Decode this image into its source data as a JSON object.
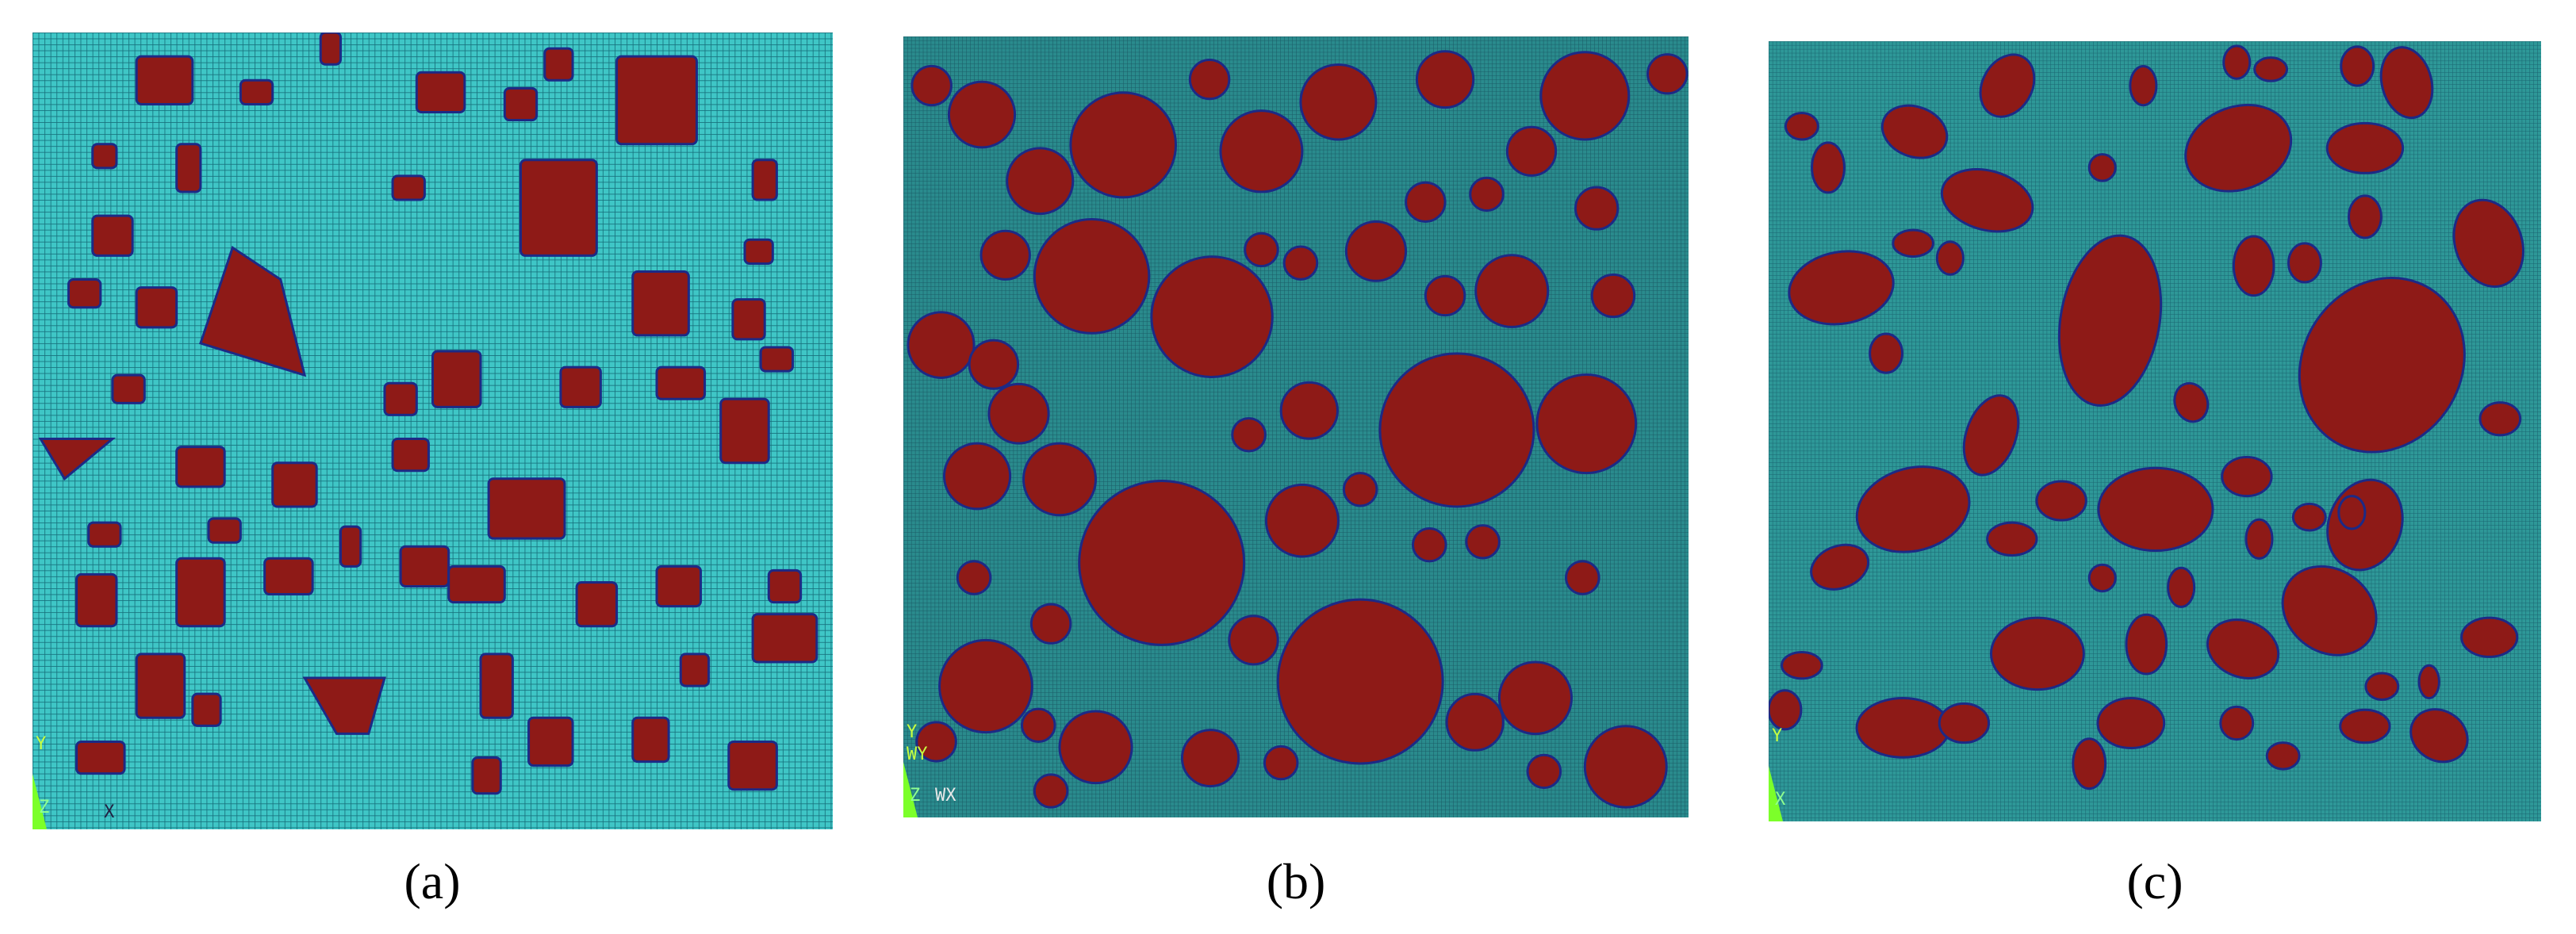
{
  "panels": [
    {
      "caption": "(a)",
      "axis_labels": [
        "Y",
        "Z",
        "X"
      ]
    },
    {
      "caption": "(b)",
      "axis_labels": [
        "Y",
        "WY",
        "Z",
        "WX"
      ]
    },
    {
      "caption": "(c)",
      "axis_labels": [
        "Y",
        "X"
      ]
    }
  ]
}
